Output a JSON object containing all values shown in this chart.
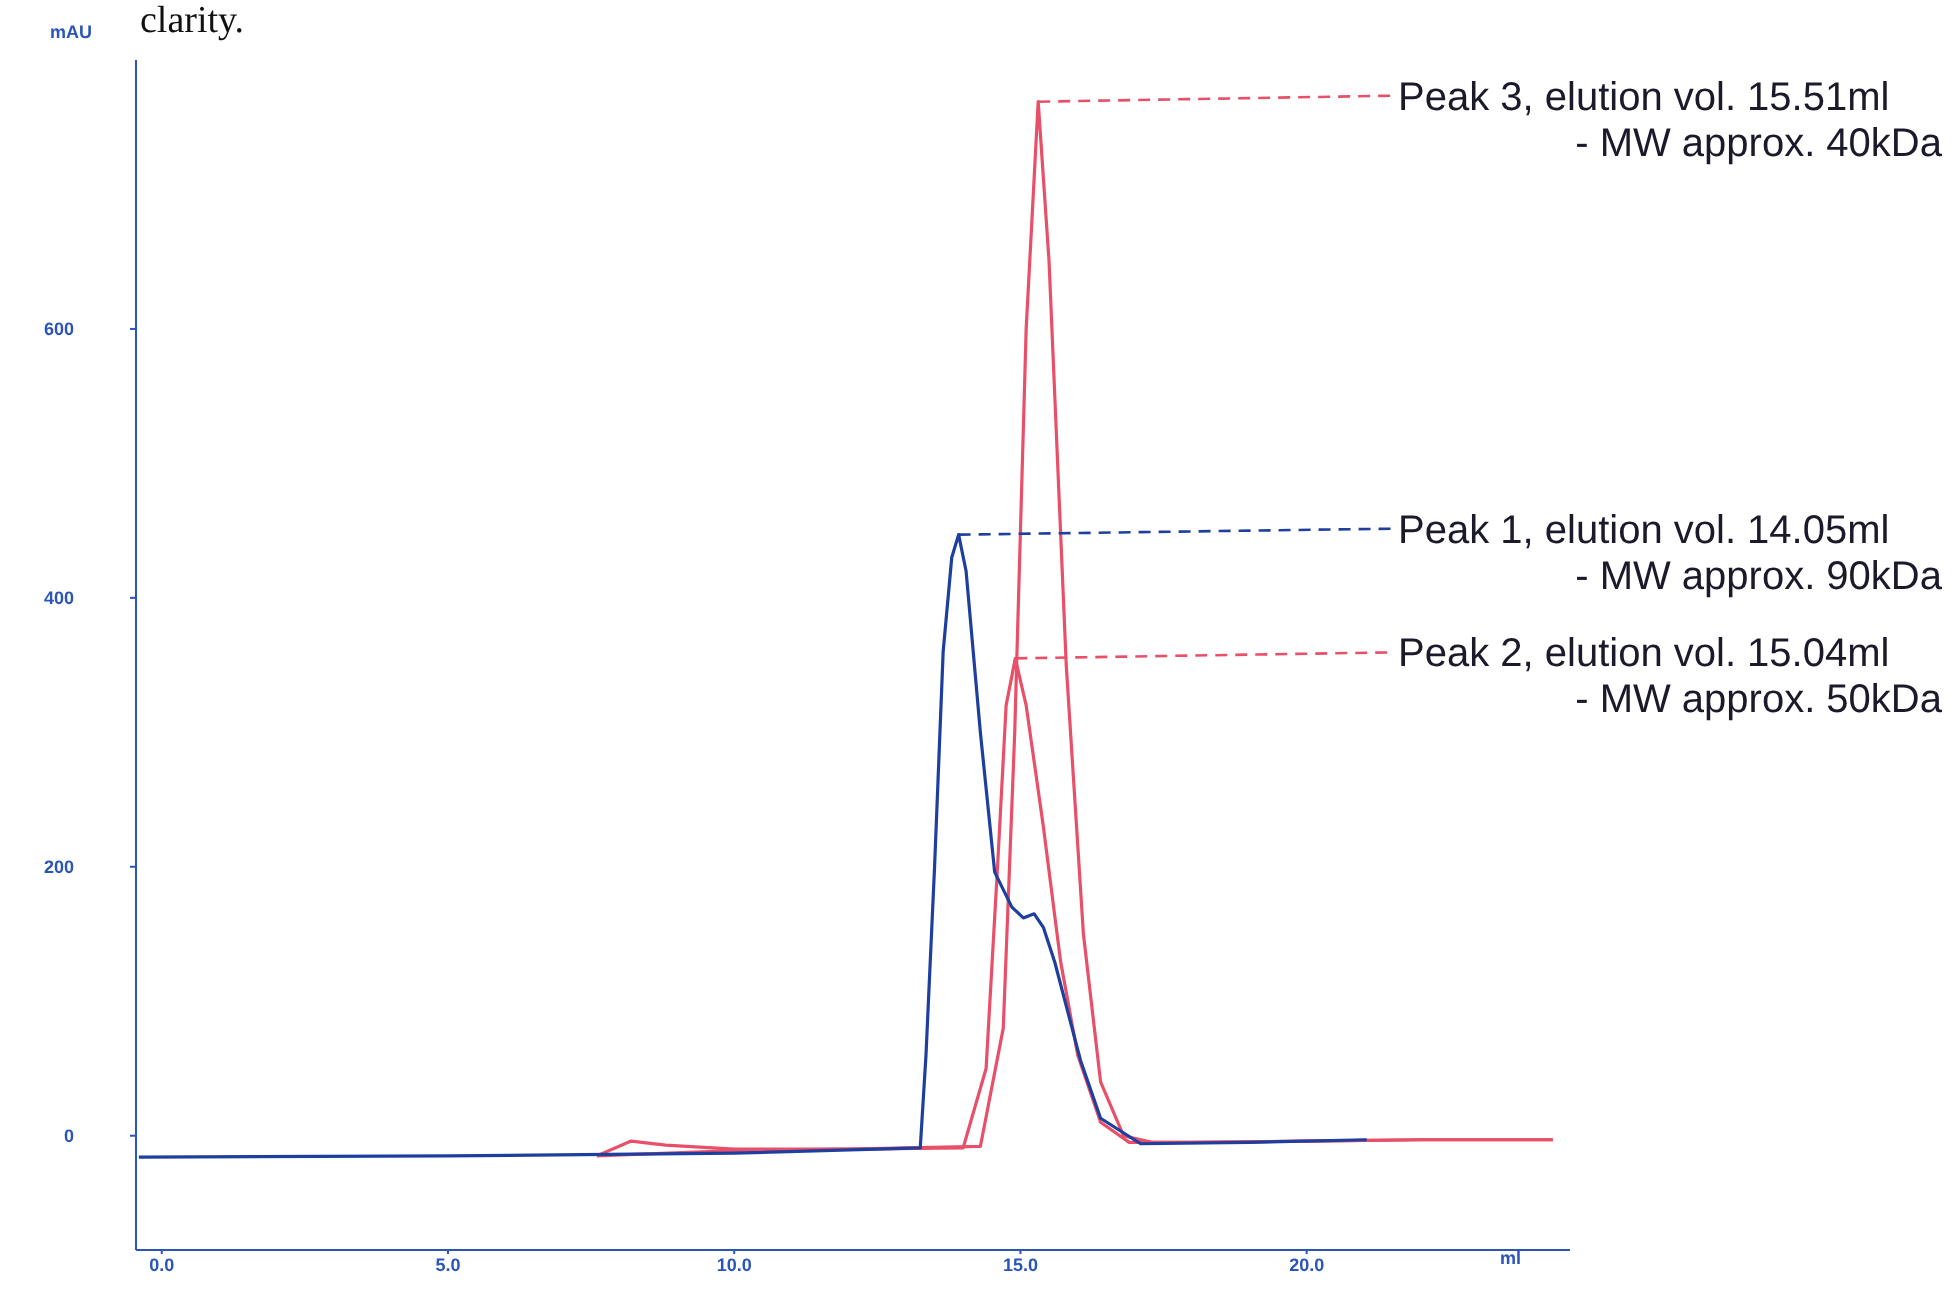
{
  "chart_data": {
    "type": "line",
    "xlabel": "ml",
    "ylabel": "mAU",
    "xlim": [
      -0.45,
      24.6
    ],
    "ylim": [
      -85,
      800
    ],
    "xticks": [
      {
        "value": 0,
        "label": "0.0"
      },
      {
        "value": 5,
        "label": "5.0"
      },
      {
        "value": 10,
        "label": "10.0"
      },
      {
        "value": 15,
        "label": "15.0"
      },
      {
        "value": 20,
        "label": "20.0"
      }
    ],
    "yticks": [
      0,
      200,
      400,
      600
    ],
    "grid": false,
    "legend": false,
    "marker": "none",
    "series": [
      {
        "color": "#e8506a",
        "x": [
          7.6,
          8.2,
          8.8,
          10,
          12,
          14.0,
          14.4,
          14.6,
          14.75,
          14.91,
          15.1,
          15.4,
          15.7,
          16.0,
          16.4,
          16.9,
          18,
          20,
          22,
          24.3
        ],
        "values": [
          -15,
          -4,
          -7,
          -10,
          -10,
          -9,
          50,
          200,
          320,
          355,
          320,
          230,
          130,
          60,
          10,
          -5,
          -5,
          -4,
          -3,
          -3
        ]
      },
      {
        "color": "#e8506a",
        "x": [
          7.6,
          10,
          12,
          14.3,
          14.7,
          14.9,
          15.1,
          15.31,
          15.5,
          15.8,
          16.1,
          16.4,
          16.8,
          17.3,
          18,
          20,
          22,
          24.3
        ],
        "values": [
          -15,
          -11,
          -10,
          -8,
          80,
          300,
          600,
          769,
          650,
          350,
          150,
          40,
          0,
          -5,
          -5,
          -4,
          -3,
          -3
        ]
      },
      {
        "color": "#1f3f9f",
        "x": [
          -0.4,
          5,
          10,
          13.25,
          13.35,
          13.5,
          13.65,
          13.8,
          13.92,
          14.05,
          14.3,
          14.55,
          14.85,
          15.05,
          15.24,
          15.4,
          15.6,
          16.05,
          16.4,
          17.1,
          19,
          21.05
        ],
        "values": [
          -16,
          -15,
          -13,
          -9,
          60,
          200,
          360,
          430,
          447,
          420,
          300,
          196,
          170,
          162,
          165,
          155,
          129,
          56,
          13,
          -6,
          -5,
          -3
        ]
      }
    ],
    "annotations": [
      {
        "text": "Peak 3, elution vol. 15.51ml\n- MW approx. 40kDa",
        "x": 15.31,
        "y": 769
      },
      {
        "text": "Peak 1, elution vol. 14.05ml\n- MW approx. 90kDa",
        "x": 13.92,
        "y": 447
      },
      {
        "text": "Peak 2, elution vol. 15.04ml\n- MW approx. 50kDa",
        "x": 14.91,
        "y": 355
      },
      "clarity."
    ]
  }
}
